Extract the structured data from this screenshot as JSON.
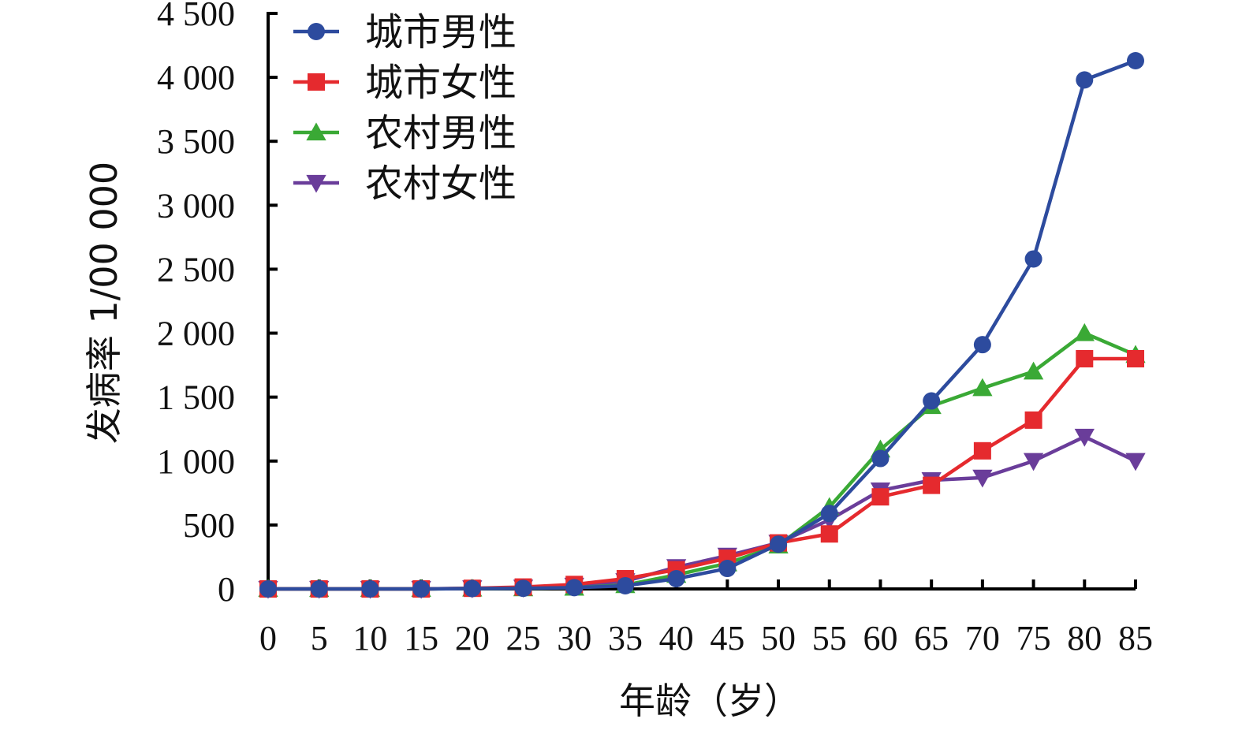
{
  "chart_data": {
    "type": "line",
    "title": "",
    "xlabel": "年龄（岁）",
    "ylabel": "发病率 1/00 000",
    "x": [
      0,
      5,
      10,
      15,
      20,
      25,
      30,
      35,
      40,
      45,
      50,
      55,
      60,
      65,
      70,
      75,
      80,
      85
    ],
    "xticks": [
      "0",
      "5",
      "10",
      "15",
      "20",
      "25",
      "30",
      "35",
      "40",
      "45",
      "50",
      "55",
      "60",
      "65",
      "70",
      "75",
      "80",
      "85"
    ],
    "yticks": [
      "0",
      "500",
      "1 000",
      "1 500",
      "2 000",
      "2 500",
      "3 000",
      "3 500",
      "4 000",
      "4 500"
    ],
    "ylim": [
      0,
      4500
    ],
    "legend_position": "top-left",
    "grid": false,
    "series": [
      {
        "name": "城市男性",
        "color": "#2d4b9e",
        "marker": "circle",
        "values": [
          0,
          0,
          0,
          0,
          3,
          5,
          10,
          25,
          80,
          160,
          350,
          590,
          1020,
          1470,
          1910,
          2580,
          3980,
          4130
        ]
      },
      {
        "name": "城市女性",
        "color": "#e52a2e",
        "marker": "square",
        "values": [
          0,
          0,
          0,
          0,
          5,
          15,
          35,
          80,
          150,
          240,
          360,
          430,
          720,
          810,
          1080,
          1320,
          1800,
          1800
        ]
      },
      {
        "name": "农村男性",
        "color": "#3aa935",
        "marker": "triangle-up",
        "values": [
          0,
          0,
          0,
          0,
          3,
          5,
          10,
          30,
          110,
          200,
          340,
          640,
          1090,
          1430,
          1570,
          1700,
          2000,
          1830
        ]
      },
      {
        "name": "农村女性",
        "color": "#6a3d9a",
        "marker": "triangle-down",
        "values": [
          0,
          0,
          0,
          0,
          5,
          10,
          25,
          60,
          170,
          260,
          360,
          540,
          770,
          850,
          870,
          1000,
          1190,
          1000
        ]
      }
    ]
  }
}
